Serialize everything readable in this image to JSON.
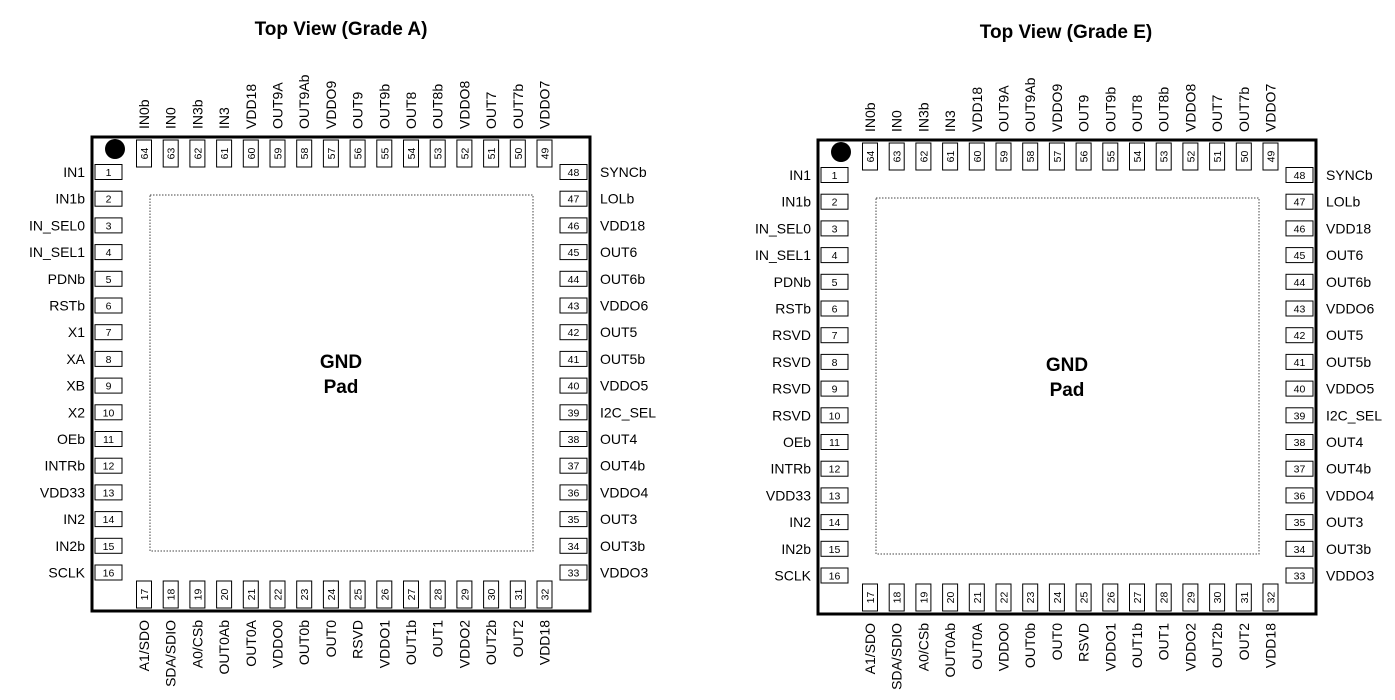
{
  "diagrams": [
    {
      "title": "Top View (Grade A)",
      "pad_label": [
        "GND",
        "Pad"
      ],
      "left_pins": [
        [
          "1",
          "IN1"
        ],
        [
          "2",
          "IN1b"
        ],
        [
          "3",
          "IN_SEL0"
        ],
        [
          "4",
          "IN_SEL1"
        ],
        [
          "5",
          "PDNb"
        ],
        [
          "6",
          "RSTb"
        ],
        [
          "7",
          "X1"
        ],
        [
          "8",
          "XA"
        ],
        [
          "9",
          "XB"
        ],
        [
          "10",
          "X2"
        ],
        [
          "11",
          "OEb"
        ],
        [
          "12",
          "INTRb"
        ],
        [
          "13",
          "VDD33"
        ],
        [
          "14",
          "IN2"
        ],
        [
          "15",
          "IN2b"
        ],
        [
          "16",
          "SCLK"
        ]
      ],
      "bottom_pins": [
        [
          "17",
          "A1/SDO"
        ],
        [
          "18",
          "SDA/SDIO"
        ],
        [
          "19",
          "A0/CSb"
        ],
        [
          "20",
          "OUT0Ab"
        ],
        [
          "21",
          "OUT0A"
        ],
        [
          "22",
          "VDDO0"
        ],
        [
          "23",
          "OUT0b"
        ],
        [
          "24",
          "OUT0"
        ],
        [
          "25",
          "RSVD"
        ],
        [
          "26",
          "VDDO1"
        ],
        [
          "27",
          "OUT1b"
        ],
        [
          "28",
          "OUT1"
        ],
        [
          "29",
          "VDDO2"
        ],
        [
          "30",
          "OUT2b"
        ],
        [
          "31",
          "OUT2"
        ],
        [
          "32",
          "VDD18"
        ]
      ],
      "right_pins": [
        [
          "48",
          "SYNCb"
        ],
        [
          "47",
          "LOLb"
        ],
        [
          "46",
          "VDD18"
        ],
        [
          "45",
          "OUT6"
        ],
        [
          "44",
          "OUT6b"
        ],
        [
          "43",
          "VDDO6"
        ],
        [
          "42",
          "OUT5"
        ],
        [
          "41",
          "OUT5b"
        ],
        [
          "40",
          "VDDO5"
        ],
        [
          "39",
          "I2C_SEL"
        ],
        [
          "38",
          "OUT4"
        ],
        [
          "37",
          "OUT4b"
        ],
        [
          "36",
          "VDDO4"
        ],
        [
          "35",
          "OUT3"
        ],
        [
          "34",
          "OUT3b"
        ],
        [
          "33",
          "VDDO3"
        ]
      ],
      "top_pins": [
        [
          "64",
          "IN0b"
        ],
        [
          "63",
          "IN0"
        ],
        [
          "62",
          "IN3b"
        ],
        [
          "61",
          "IN3"
        ],
        [
          "60",
          "VDD18"
        ],
        [
          "59",
          "OUT9A"
        ],
        [
          "58",
          "OUT9Ab"
        ],
        [
          "57",
          "VDDO9"
        ],
        [
          "56",
          "OUT9"
        ],
        [
          "55",
          "OUT9b"
        ],
        [
          "54",
          "OUT8"
        ],
        [
          "53",
          "OUT8b"
        ],
        [
          "52",
          "VDDO8"
        ],
        [
          "51",
          "OUT7"
        ],
        [
          "50",
          "OUT7b"
        ],
        [
          "49",
          "VDDO7"
        ]
      ]
    },
    {
      "title": "Top View (Grade E)",
      "pad_label": [
        "GND",
        "Pad"
      ],
      "left_pins": [
        [
          "1",
          "IN1"
        ],
        [
          "2",
          "IN1b"
        ],
        [
          "3",
          "IN_SEL0"
        ],
        [
          "4",
          "IN_SEL1"
        ],
        [
          "5",
          "PDNb"
        ],
        [
          "6",
          "RSTb"
        ],
        [
          "7",
          "RSVD"
        ],
        [
          "8",
          "RSVD"
        ],
        [
          "9",
          "RSVD"
        ],
        [
          "10",
          "RSVD"
        ],
        [
          "11",
          "OEb"
        ],
        [
          "12",
          "INTRb"
        ],
        [
          "13",
          "VDD33"
        ],
        [
          "14",
          "IN2"
        ],
        [
          "15",
          "IN2b"
        ],
        [
          "16",
          "SCLK"
        ]
      ],
      "bottom_pins": [
        [
          "17",
          "A1/SDO"
        ],
        [
          "18",
          "SDA/SDIO"
        ],
        [
          "19",
          "A0/CSb"
        ],
        [
          "20",
          "OUT0Ab"
        ],
        [
          "21",
          "OUT0A"
        ],
        [
          "22",
          "VDDO0"
        ],
        [
          "23",
          "OUT0b"
        ],
        [
          "24",
          "OUT0"
        ],
        [
          "25",
          "RSVD"
        ],
        [
          "26",
          "VDDO1"
        ],
        [
          "27",
          "OUT1b"
        ],
        [
          "28",
          "OUT1"
        ],
        [
          "29",
          "VDDO2"
        ],
        [
          "30",
          "OUT2b"
        ],
        [
          "31",
          "OUT2"
        ],
        [
          "32",
          "VDD18"
        ]
      ],
      "right_pins": [
        [
          "48",
          "SYNCb"
        ],
        [
          "47",
          "LOLb"
        ],
        [
          "46",
          "VDD18"
        ],
        [
          "45",
          "OUT6"
        ],
        [
          "44",
          "OUT6b"
        ],
        [
          "43",
          "VDDO6"
        ],
        [
          "42",
          "OUT5"
        ],
        [
          "41",
          "OUT5b"
        ],
        [
          "40",
          "VDDO5"
        ],
        [
          "39",
          "I2C_SEL"
        ],
        [
          "38",
          "OUT4"
        ],
        [
          "37",
          "OUT4b"
        ],
        [
          "36",
          "VDDO4"
        ],
        [
          "35",
          "OUT3"
        ],
        [
          "34",
          "OUT3b"
        ],
        [
          "33",
          "VDDO3"
        ]
      ],
      "top_pins": [
        [
          "64",
          "IN0b"
        ],
        [
          "63",
          "IN0"
        ],
        [
          "62",
          "IN3b"
        ],
        [
          "61",
          "IN3"
        ],
        [
          "60",
          "VDD18"
        ],
        [
          "59",
          "OUT9A"
        ],
        [
          "58",
          "OUT9Ab"
        ],
        [
          "57",
          "VDDO9"
        ],
        [
          "56",
          "OUT9"
        ],
        [
          "55",
          "OUT9b"
        ],
        [
          "54",
          "OUT8"
        ],
        [
          "53",
          "OUT8b"
        ],
        [
          "52",
          "VDDO8"
        ],
        [
          "51",
          "OUT7"
        ],
        [
          "50",
          "OUT7b"
        ],
        [
          "49",
          "VDDO7"
        ]
      ]
    }
  ]
}
